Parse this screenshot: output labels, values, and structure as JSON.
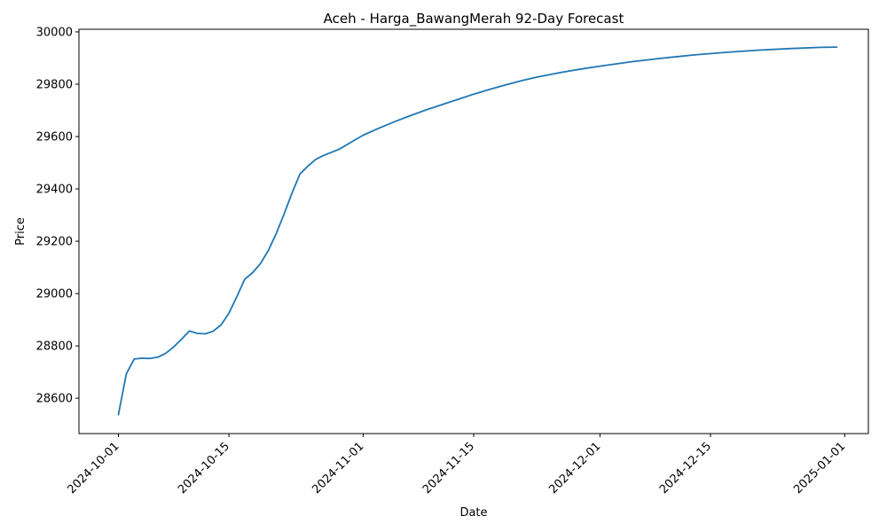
{
  "chart_data": {
    "type": "line",
    "title": "Aceh - Harga_BawangMerah 92-Day Forecast",
    "xlabel": "Date",
    "ylabel": "Price",
    "x_start": "2024-10-01",
    "x_end": "2024-12-31",
    "xlim": [
      "2024-09-26",
      "2025-01-04"
    ],
    "ylim": [
      28465,
      30010
    ],
    "x_ticks": [
      "2024-10-01",
      "2024-10-15",
      "2024-11-01",
      "2024-11-15",
      "2024-12-01",
      "2024-12-15",
      "2025-01-01"
    ],
    "y_ticks": [
      28600,
      28800,
      29000,
      29200,
      29400,
      29600,
      29800,
      30000
    ],
    "grid": false,
    "legend": "none",
    "series": [
      {
        "color": "#1f77b4",
        "x": [
          "2024-10-01",
          "2024-10-02",
          "2024-10-03",
          "2024-10-04",
          "2024-10-05",
          "2024-10-06",
          "2024-10-07",
          "2024-10-08",
          "2024-10-09",
          "2024-10-10",
          "2024-10-11",
          "2024-10-12",
          "2024-10-13",
          "2024-10-14",
          "2024-10-15",
          "2024-10-16",
          "2024-10-17",
          "2024-10-18",
          "2024-10-19",
          "2024-10-20",
          "2024-10-21",
          "2024-10-22",
          "2024-10-23",
          "2024-10-24",
          "2024-10-25",
          "2024-10-26",
          "2024-10-27",
          "2024-10-28",
          "2024-10-29",
          "2024-10-30",
          "2024-10-31",
          "2024-11-01",
          "2024-11-03",
          "2024-11-05",
          "2024-11-07",
          "2024-11-09",
          "2024-11-11",
          "2024-11-13",
          "2024-11-15",
          "2024-11-17",
          "2024-11-19",
          "2024-11-21",
          "2024-11-23",
          "2024-11-25",
          "2024-11-27",
          "2024-11-29",
          "2024-12-01",
          "2024-12-05",
          "2024-12-09",
          "2024-12-13",
          "2024-12-17",
          "2024-12-21",
          "2024-12-25",
          "2024-12-29",
          "2024-12-31"
        ],
        "y": [
          28537,
          28693,
          28750,
          28753,
          28752,
          28757,
          28772,
          28796,
          28826,
          28857,
          28848,
          28846,
          28856,
          28880,
          28925,
          28988,
          29055,
          29080,
          29115,
          29165,
          29230,
          29305,
          29385,
          29457,
          29487,
          29513,
          29528,
          29540,
          29552,
          29570,
          29588,
          29605,
          29632,
          29657,
          29680,
          29702,
          29722,
          29742,
          29762,
          29780,
          29797,
          29813,
          29827,
          29839,
          29850,
          29860,
          29869,
          29886,
          29900,
          29912,
          29922,
          29930,
          29936,
          29941,
          29942
        ]
      }
    ]
  }
}
